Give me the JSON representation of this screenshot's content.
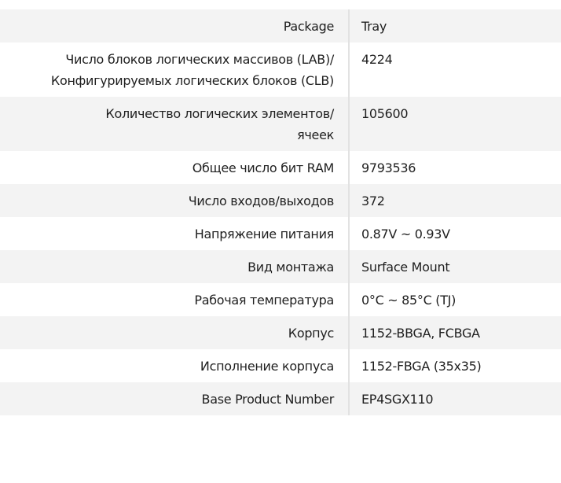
{
  "rows": [
    {
      "label": "Package",
      "value": "Tray"
    },
    {
      "label": "Число блоков логических массивов (LAB)/ Конфигурируемых логических блоков (CLB)",
      "value": "4224"
    },
    {
      "label": "Количество логических элементов/ячеек",
      "value": "105600"
    },
    {
      "label": "Общее число бит RAM",
      "value": "9793536"
    },
    {
      "label": "Число входов/выходов",
      "value": "372"
    },
    {
      "label": "Напряжение питания",
      "value": "0.87V ~ 0.93V"
    },
    {
      "label": "Вид монтажа",
      "value": "Surface Mount"
    },
    {
      "label": "Рабочая температура",
      "value": "0°C ~ 85°C (TJ)"
    },
    {
      "label": "Корпус",
      "value": "1152-BBGA, FCBGA"
    },
    {
      "label": "Исполнение корпуса",
      "value": "1152-FBGA (35x35)"
    },
    {
      "label": "Base Product Number",
      "value": "EP4SGX110"
    }
  ]
}
